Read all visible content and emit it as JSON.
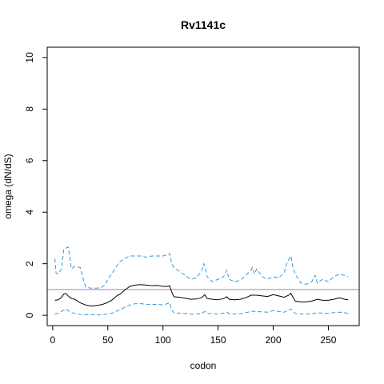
{
  "chart_data": {
    "type": "line",
    "title": "Rv1141c",
    "xlabel": "codon",
    "ylabel": "omega (dN/dS)",
    "xlim": [
      -5,
      278
    ],
    "ylim": [
      -0.4,
      10.4
    ],
    "x_ticks": [
      0,
      50,
      100,
      150,
      200,
      250
    ],
    "y_ticks": [
      0,
      2,
      4,
      6,
      8,
      10
    ],
    "reference_line": {
      "y": 1,
      "color": "#cc66cc"
    },
    "colors": {
      "mean": "#000000",
      "bounds": "#3399dd"
    },
    "series": [
      {
        "style": "solid",
        "x": [
          2,
          5,
          8,
          10,
          12,
          14,
          17,
          20,
          25,
          30,
          35,
          40,
          45,
          50,
          54,
          58,
          62,
          66,
          70,
          75,
          80,
          85,
          90,
          95,
          100,
          104,
          106,
          108,
          110,
          115,
          120,
          125,
          130,
          135,
          138,
          140,
          145,
          150,
          155,
          158,
          160,
          165,
          170,
          175,
          180,
          185,
          190,
          195,
          200,
          205,
          210,
          214,
          216,
          218,
          220,
          225,
          230,
          235,
          240,
          245,
          250,
          255,
          260,
          265,
          268
        ],
        "y": [
          0.58,
          0.6,
          0.7,
          0.82,
          0.85,
          0.75,
          0.65,
          0.62,
          0.48,
          0.4,
          0.36,
          0.38,
          0.42,
          0.5,
          0.6,
          0.75,
          0.85,
          1.0,
          1.12,
          1.17,
          1.19,
          1.17,
          1.15,
          1.16,
          1.12,
          1.12,
          1.15,
          0.9,
          0.72,
          0.7,
          0.66,
          0.62,
          0.63,
          0.68,
          0.8,
          0.65,
          0.62,
          0.6,
          0.65,
          0.72,
          0.62,
          0.6,
          0.62,
          0.68,
          0.78,
          0.78,
          0.75,
          0.73,
          0.8,
          0.75,
          0.7,
          0.78,
          0.85,
          0.7,
          0.55,
          0.52,
          0.52,
          0.55,
          0.62,
          0.58,
          0.58,
          0.62,
          0.68,
          0.62,
          0.6
        ]
      },
      {
        "style": "dashed",
        "x": [
          2,
          3,
          5,
          8,
          10,
          12,
          14,
          15,
          17,
          20,
          25,
          28,
          30,
          35,
          40,
          45,
          48,
          50,
          55,
          60,
          65,
          70,
          75,
          80,
          85,
          90,
          95,
          100,
          104,
          105,
          106,
          108,
          110,
          115,
          120,
          125,
          130,
          135,
          137,
          138,
          140,
          145,
          150,
          155,
          158,
          160,
          165,
          170,
          175,
          180,
          181,
          183,
          185,
          190,
          195,
          200,
          205,
          210,
          213,
          214,
          216,
          218,
          220,
          225,
          230,
          235,
          238,
          240,
          245,
          250,
          255,
          258,
          260,
          265,
          268
        ],
        "y": [
          2.2,
          1.65,
          1.6,
          1.8,
          2.55,
          2.6,
          2.65,
          2.4,
          1.8,
          1.9,
          1.85,
          1.35,
          1.1,
          1.05,
          1.05,
          1.1,
          1.2,
          1.4,
          1.7,
          2.05,
          2.2,
          2.3,
          2.3,
          2.3,
          2.25,
          2.3,
          2.3,
          2.3,
          2.35,
          2.35,
          2.4,
          2.0,
          1.85,
          1.7,
          1.55,
          1.4,
          1.45,
          1.7,
          2.0,
          1.9,
          1.5,
          1.3,
          1.4,
          1.5,
          1.75,
          1.4,
          1.3,
          1.35,
          1.55,
          1.75,
          1.85,
          1.6,
          1.8,
          1.5,
          1.4,
          1.5,
          1.45,
          1.65,
          2.1,
          2.15,
          2.3,
          1.85,
          1.6,
          1.25,
          1.2,
          1.3,
          1.55,
          1.25,
          1.4,
          1.3,
          1.5,
          1.55,
          1.6,
          1.55,
          1.5
        ]
      },
      {
        "style": "dashed",
        "x": [
          2,
          5,
          8,
          10,
          12,
          14,
          17,
          20,
          25,
          30,
          35,
          40,
          45,
          50,
          55,
          60,
          65,
          70,
          75,
          80,
          85,
          90,
          95,
          100,
          104,
          106,
          108,
          110,
          115,
          120,
          125,
          130,
          135,
          138,
          140,
          145,
          150,
          155,
          158,
          160,
          165,
          170,
          175,
          180,
          185,
          190,
          195,
          200,
          205,
          210,
          214,
          216,
          218,
          220,
          225,
          230,
          235,
          240,
          245,
          250,
          255,
          260,
          265,
          268
        ],
        "y": [
          0.05,
          0.08,
          0.15,
          0.2,
          0.25,
          0.18,
          0.1,
          0.08,
          0.03,
          0.02,
          0.02,
          0.02,
          0.03,
          0.05,
          0.1,
          0.2,
          0.3,
          0.4,
          0.45,
          0.45,
          0.43,
          0.42,
          0.43,
          0.4,
          0.45,
          0.5,
          0.2,
          0.1,
          0.08,
          0.07,
          0.05,
          0.05,
          0.07,
          0.15,
          0.08,
          0.06,
          0.05,
          0.08,
          0.12,
          0.06,
          0.05,
          0.06,
          0.1,
          0.15,
          0.15,
          0.13,
          0.12,
          0.18,
          0.15,
          0.12,
          0.2,
          0.25,
          0.15,
          0.07,
          0.05,
          0.05,
          0.06,
          0.1,
          0.08,
          0.08,
          0.1,
          0.12,
          0.1,
          0.07
        ]
      }
    ]
  }
}
